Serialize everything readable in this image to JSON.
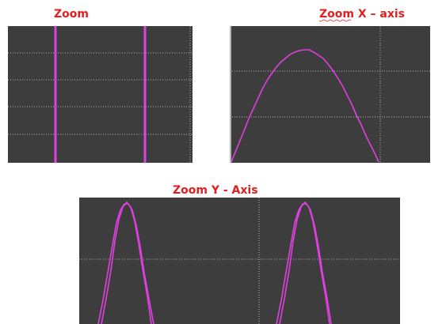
{
  "panels": [
    {
      "title": "Zoom"
    },
    {
      "title": "Zoom X – axis"
    },
    {
      "title": "Zoom Y - Axis"
    }
  ]
}
